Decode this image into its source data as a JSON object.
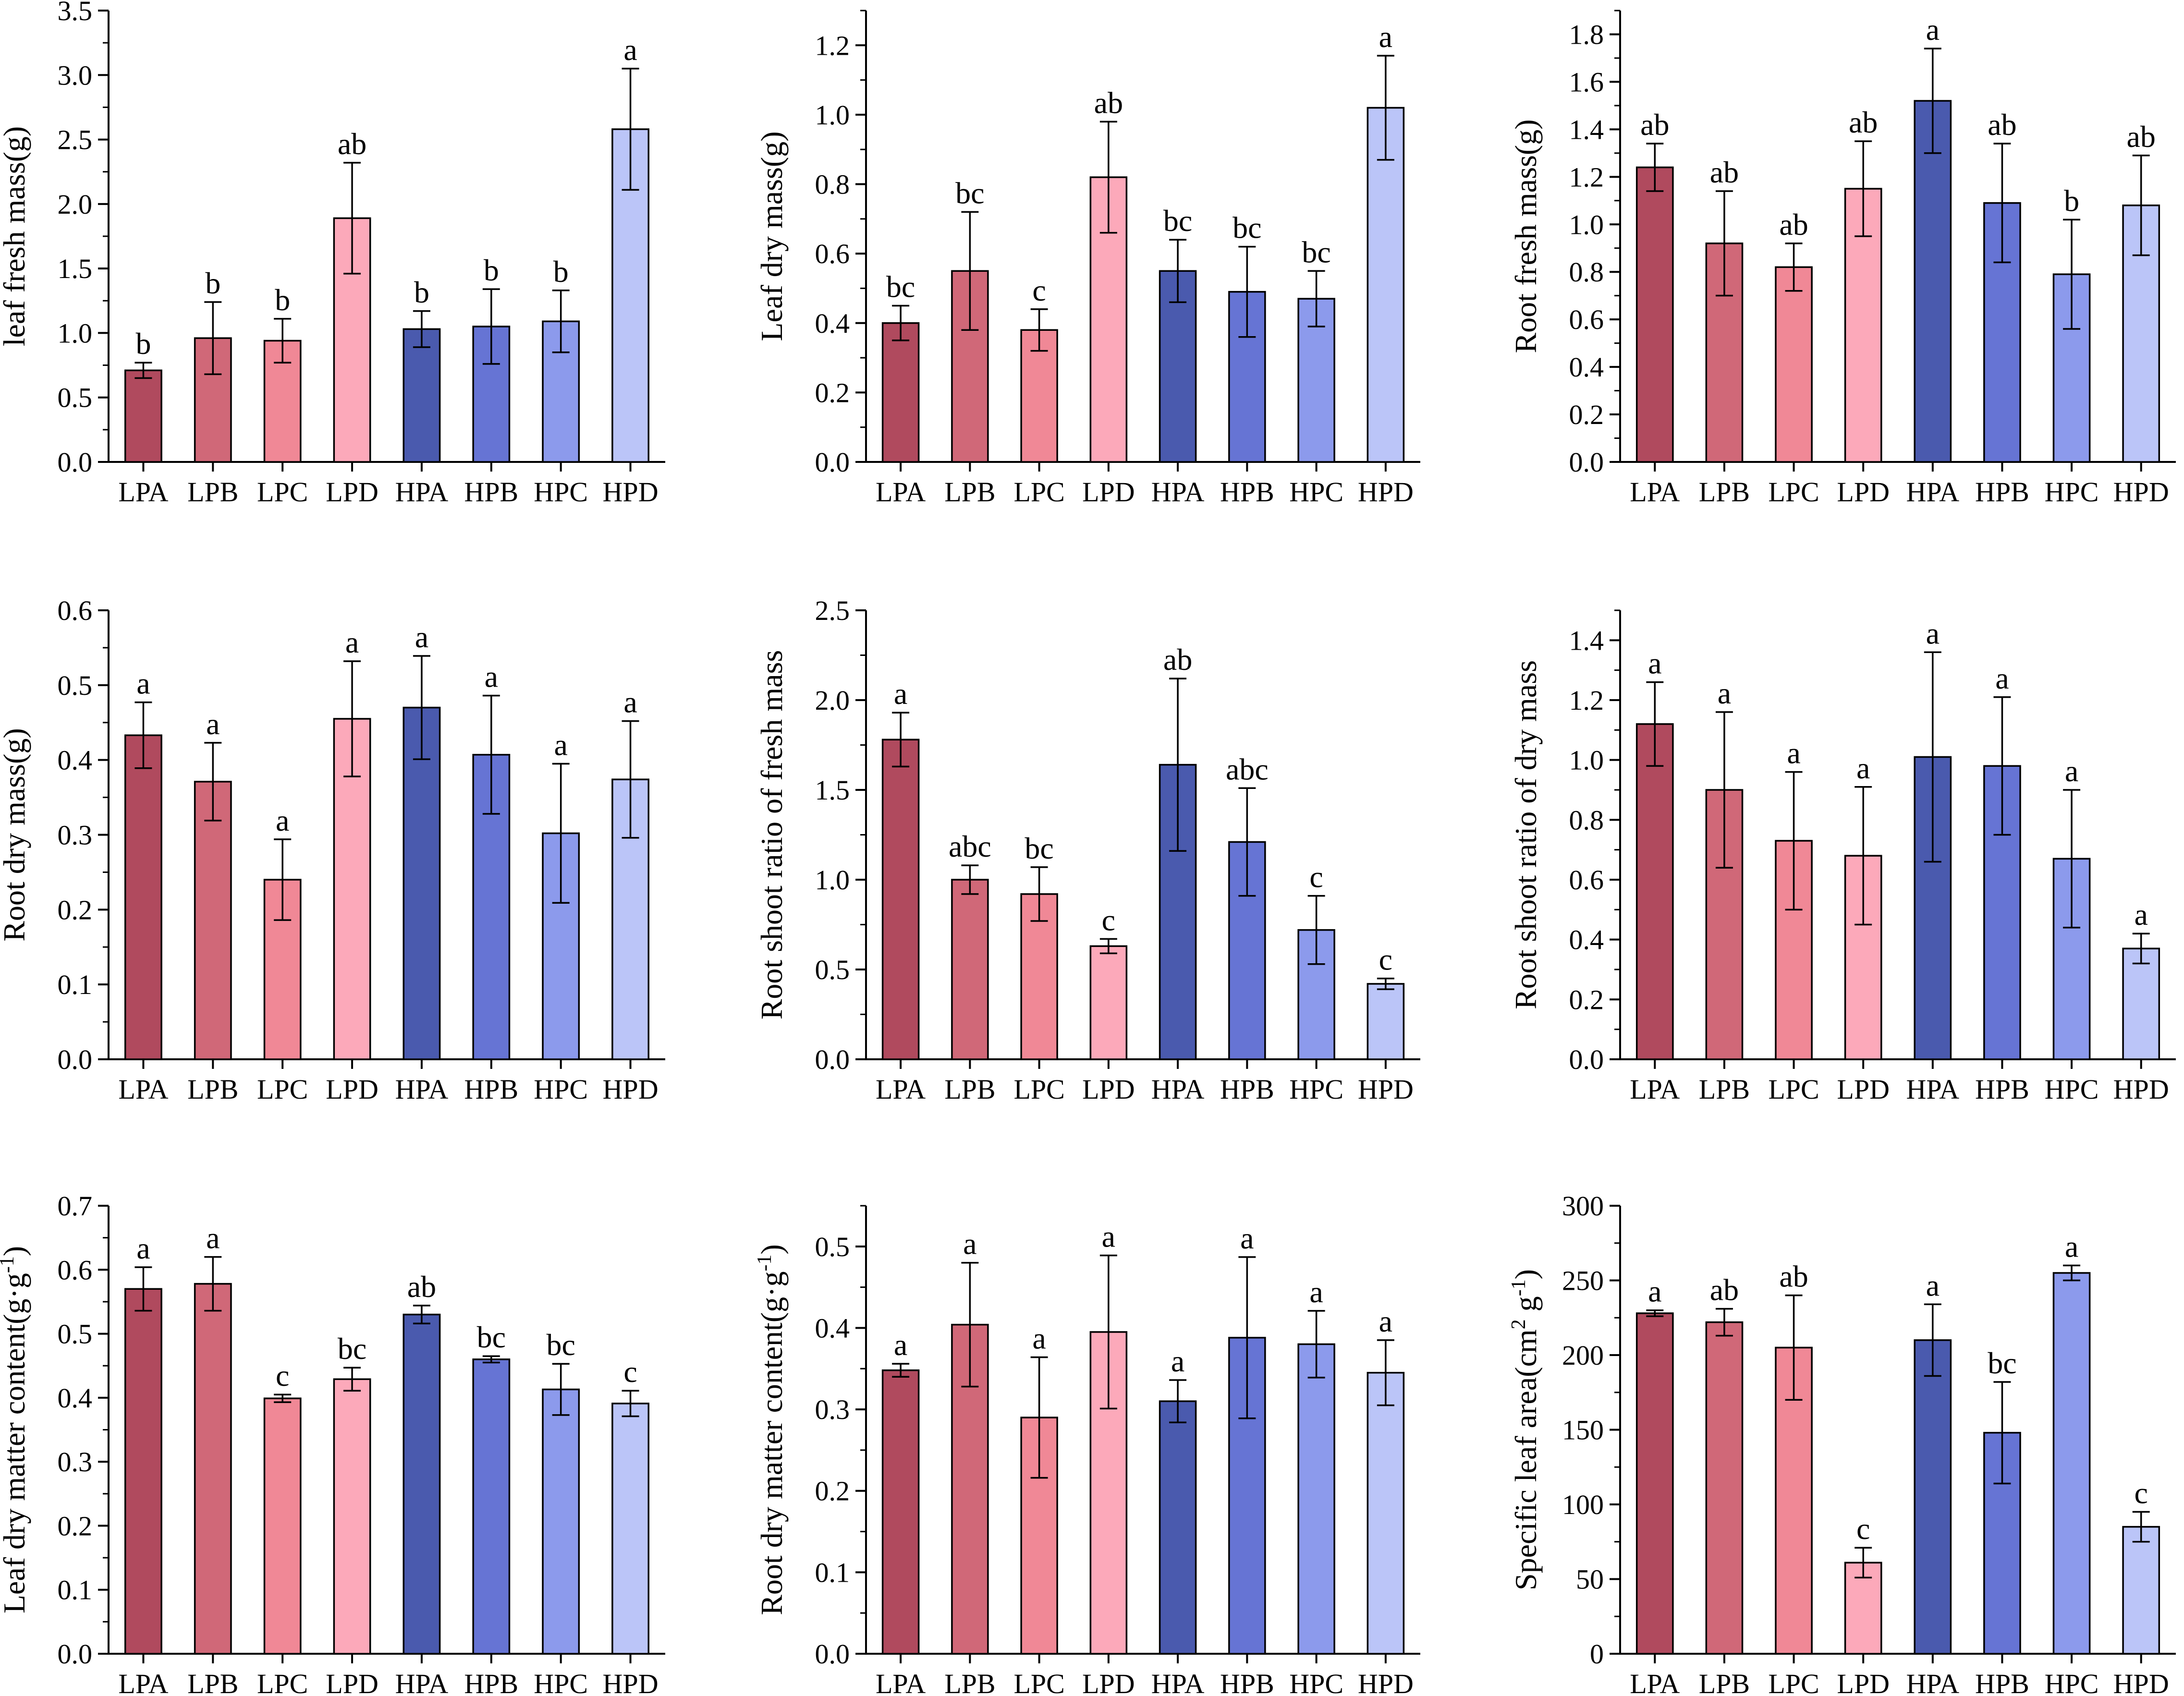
{
  "figure": {
    "categories": [
      "LPA",
      "LPB",
      "LPC",
      "LPD",
      "HPA",
      "HPB",
      "HPC",
      "HPD"
    ],
    "colors": [
      "#B04A5E",
      "#D06878",
      "#F08896",
      "#FCA9BA",
      "#4A5AAE",
      "#6674D4",
      "#8C9AEC",
      "#BBC5F8"
    ]
  },
  "chart_data": [
    {
      "type": "bar",
      "ylabel": "leaf fresh mass(g)",
      "ylim": [
        0,
        3.5
      ],
      "yticks": [
        "0.0",
        "0.5",
        "1.0",
        "1.5",
        "2.0",
        "2.5",
        "3.0",
        "3.5"
      ],
      "categories": [
        "LPA",
        "LPB",
        "LPC",
        "LPD",
        "HPA",
        "HPB",
        "HPC",
        "HPD"
      ],
      "values": [
        0.71,
        0.96,
        0.94,
        1.89,
        1.03,
        1.05,
        1.09,
        2.58
      ],
      "errors": [
        0.06,
        0.28,
        0.17,
        0.43,
        0.14,
        0.29,
        0.24,
        0.47
      ],
      "letters": [
        "b",
        "b",
        "b",
        "ab",
        "b",
        "b",
        "b",
        "a"
      ]
    },
    {
      "type": "bar",
      "ylabel": "Leaf dry mass(g)",
      "ylim": [
        0,
        1.3
      ],
      "yticks": [
        "0.0",
        "0.2",
        "0.4",
        "0.6",
        "0.8",
        "1.0",
        "1.2"
      ],
      "categories": [
        "LPA",
        "LPB",
        "LPC",
        "LPD",
        "HPA",
        "HPB",
        "HPC",
        "HPD"
      ],
      "values": [
        0.4,
        0.55,
        0.38,
        0.82,
        0.55,
        0.49,
        0.47,
        1.02
      ],
      "errors": [
        0.05,
        0.17,
        0.06,
        0.16,
        0.09,
        0.13,
        0.08,
        0.15
      ],
      "letters": [
        "bc",
        "bc",
        "c",
        "ab",
        "bc",
        "bc",
        "bc",
        "a"
      ]
    },
    {
      "type": "bar",
      "ylabel": "Root fresh mass(g)",
      "ylim": [
        0,
        1.9
      ],
      "yticks": [
        "0.0",
        "0.2",
        "0.4",
        "0.6",
        "0.8",
        "1.0",
        "1.2",
        "1.4",
        "1.6",
        "1.8"
      ],
      "categories": [
        "LPA",
        "LPB",
        "LPC",
        "LPD",
        "HPA",
        "HPB",
        "HPC",
        "HPD"
      ],
      "values": [
        1.24,
        0.92,
        0.82,
        1.15,
        1.52,
        1.09,
        0.79,
        1.08
      ],
      "errors": [
        0.1,
        0.22,
        0.1,
        0.2,
        0.22,
        0.25,
        0.23,
        0.21
      ],
      "letters": [
        "ab",
        "ab",
        "ab",
        "ab",
        "a",
        "ab",
        "b",
        "ab"
      ]
    },
    {
      "type": "bar",
      "ylabel": "Root dry mass(g)",
      "ylim": [
        0,
        0.6
      ],
      "yticks": [
        "0.0",
        "0.1",
        "0.2",
        "0.3",
        "0.4",
        "0.5",
        "0.6"
      ],
      "categories": [
        "LPA",
        "LPB",
        "LPC",
        "LPD",
        "HPA",
        "HPB",
        "HPC",
        "HPD"
      ],
      "values": [
        0.433,
        0.371,
        0.24,
        0.455,
        0.47,
        0.407,
        0.302,
        0.374
      ],
      "errors": [
        0.044,
        0.052,
        0.054,
        0.077,
        0.069,
        0.079,
        0.093,
        0.078
      ],
      "letters": [
        "a",
        "a",
        "a",
        "a",
        "a",
        "a",
        "a",
        "a"
      ]
    },
    {
      "type": "bar",
      "ylabel": "Root shoot ratio of fresh mass",
      "ylim": [
        0,
        2.5
      ],
      "yticks": [
        "0.0",
        "0.5",
        "1.0",
        "1.5",
        "2.0",
        "2.5"
      ],
      "categories": [
        "LPA",
        "LPB",
        "LPC",
        "LPD",
        "HPA",
        "HPB",
        "HPC",
        "HPD"
      ],
      "values": [
        1.78,
        1.0,
        0.92,
        0.63,
        1.64,
        1.21,
        0.72,
        0.42
      ],
      "errors": [
        0.15,
        0.08,
        0.15,
        0.04,
        0.48,
        0.3,
        0.19,
        0.03
      ],
      "letters": [
        "a",
        "abc",
        "bc",
        "c",
        "ab",
        "abc",
        "c",
        "c"
      ]
    },
    {
      "type": "bar",
      "ylabel": "Root shoot ratio of dry mass",
      "ylim": [
        0,
        1.5
      ],
      "yticks": [
        "0.0",
        "0.2",
        "0.4",
        "0.6",
        "0.8",
        "1.0",
        "1.2",
        "1.4"
      ],
      "categories": [
        "LPA",
        "LPB",
        "LPC",
        "LPD",
        "HPA",
        "HPB",
        "HPC",
        "HPD"
      ],
      "values": [
        1.12,
        0.9,
        0.73,
        0.68,
        1.01,
        0.98,
        0.67,
        0.37
      ],
      "errors": [
        0.14,
        0.26,
        0.23,
        0.23,
        0.35,
        0.23,
        0.23,
        0.05
      ],
      "letters": [
        "a",
        "a",
        "a",
        "a",
        "a",
        "a",
        "a",
        "a"
      ]
    },
    {
      "type": "bar",
      "ylabel": "Leaf dry matter content(g·g",
      "ylabel_sup": "-1",
      "ylabel_end": ")",
      "ylim": [
        0,
        0.7
      ],
      "yticks": [
        "0.0",
        "0.1",
        "0.2",
        "0.3",
        "0.4",
        "0.5",
        "0.6",
        "0.7"
      ],
      "categories": [
        "LPA",
        "LPB",
        "LPC",
        "LPD",
        "HPA",
        "HPB",
        "HPC",
        "HPD"
      ],
      "values": [
        0.57,
        0.578,
        0.399,
        0.429,
        0.53,
        0.46,
        0.413,
        0.391
      ],
      "errors": [
        0.034,
        0.042,
        0.006,
        0.018,
        0.014,
        0.005,
        0.04,
        0.02
      ],
      "letters": [
        "a",
        "a",
        "c",
        "bc",
        "ab",
        "bc",
        "bc",
        "c"
      ]
    },
    {
      "type": "bar",
      "ylabel": "Root dry matter content(g·g",
      "ylabel_sup": "-1",
      "ylabel_end": ")",
      "ylim": [
        0,
        0.55
      ],
      "yticks": [
        "0.0",
        "0.1",
        "0.2",
        "0.3",
        "0.4",
        "0.5"
      ],
      "categories": [
        "LPA",
        "LPB",
        "LPC",
        "LPD",
        "HPA",
        "HPB",
        "HPC",
        "HPD"
      ],
      "values": [
        0.348,
        0.404,
        0.29,
        0.395,
        0.31,
        0.388,
        0.38,
        0.345
      ],
      "errors": [
        0.008,
        0.076,
        0.074,
        0.094,
        0.026,
        0.099,
        0.041,
        0.04
      ],
      "letters": [
        "a",
        "a",
        "a",
        "a",
        "a",
        "a",
        "a",
        "a"
      ]
    },
    {
      "type": "bar",
      "ylabel": "Specific leaf area(cm",
      "ylabel_sup": "2",
      "ylabel_end": " g",
      "ylabel_sup2": "-1",
      "ylabel_end2": ")",
      "ylim": [
        0,
        300
      ],
      "yticks": [
        "0",
        "50",
        "100",
        "150",
        "200",
        "250",
        "300"
      ],
      "categories": [
        "LPA",
        "LPB",
        "LPC",
        "LPD",
        "HPA",
        "HPB",
        "HPC",
        "HPD"
      ],
      "values": [
        228,
        222,
        205,
        61,
        210,
        148,
        255,
        85
      ],
      "errors": [
        2,
        9,
        35,
        10,
        24,
        34,
        5,
        10
      ],
      "letters": [
        "a",
        "ab",
        "ab",
        "c",
        "a",
        "bc",
        "a",
        "c"
      ]
    }
  ]
}
